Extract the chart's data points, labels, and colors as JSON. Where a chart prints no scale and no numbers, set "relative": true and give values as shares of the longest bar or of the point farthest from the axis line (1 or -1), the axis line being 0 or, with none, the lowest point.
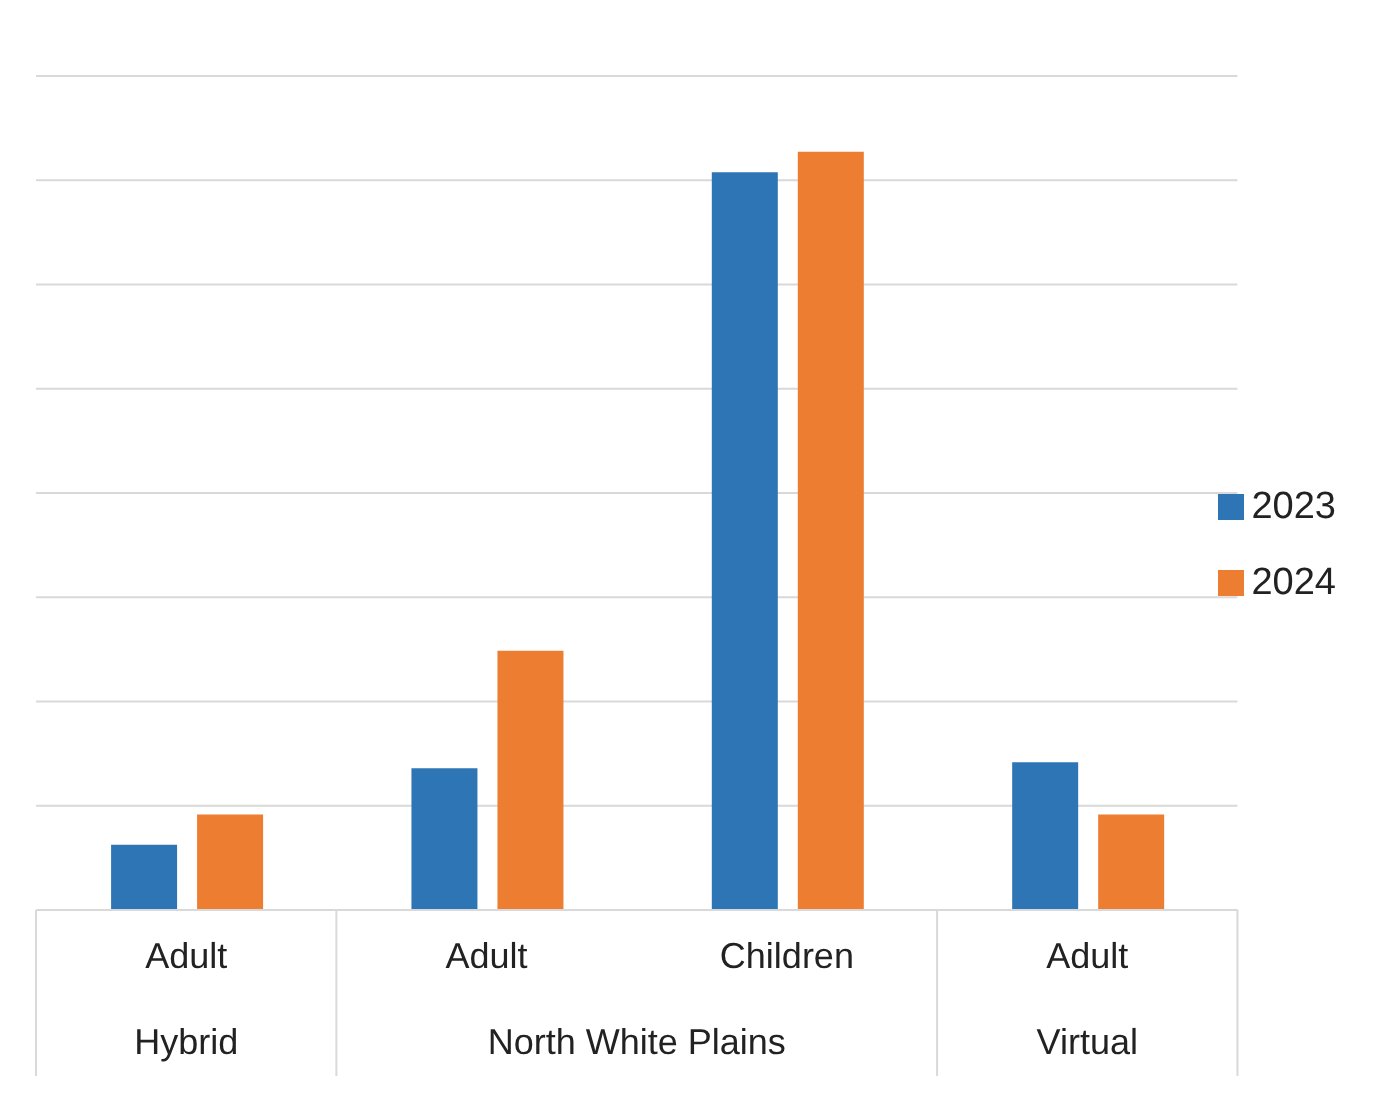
{
  "chart_data": {
    "type": "bar",
    "relative": true,
    "categories": [
      "Adult",
      "Adult",
      "Children",
      "Adult"
    ],
    "series": [
      {
        "name": "2023",
        "color": "#2e75b6",
        "values": [
          0.086,
          0.187,
          0.973,
          0.195
        ]
      },
      {
        "name": "2024",
        "color": "#ed7d31",
        "values": [
          0.126,
          0.342,
          1,
          0.126
        ]
      }
    ],
    "annotations": [
      "Hybrid",
      "North White Plains",
      "Virtual"
    ],
    "grid": "y",
    "legend": "right"
  }
}
